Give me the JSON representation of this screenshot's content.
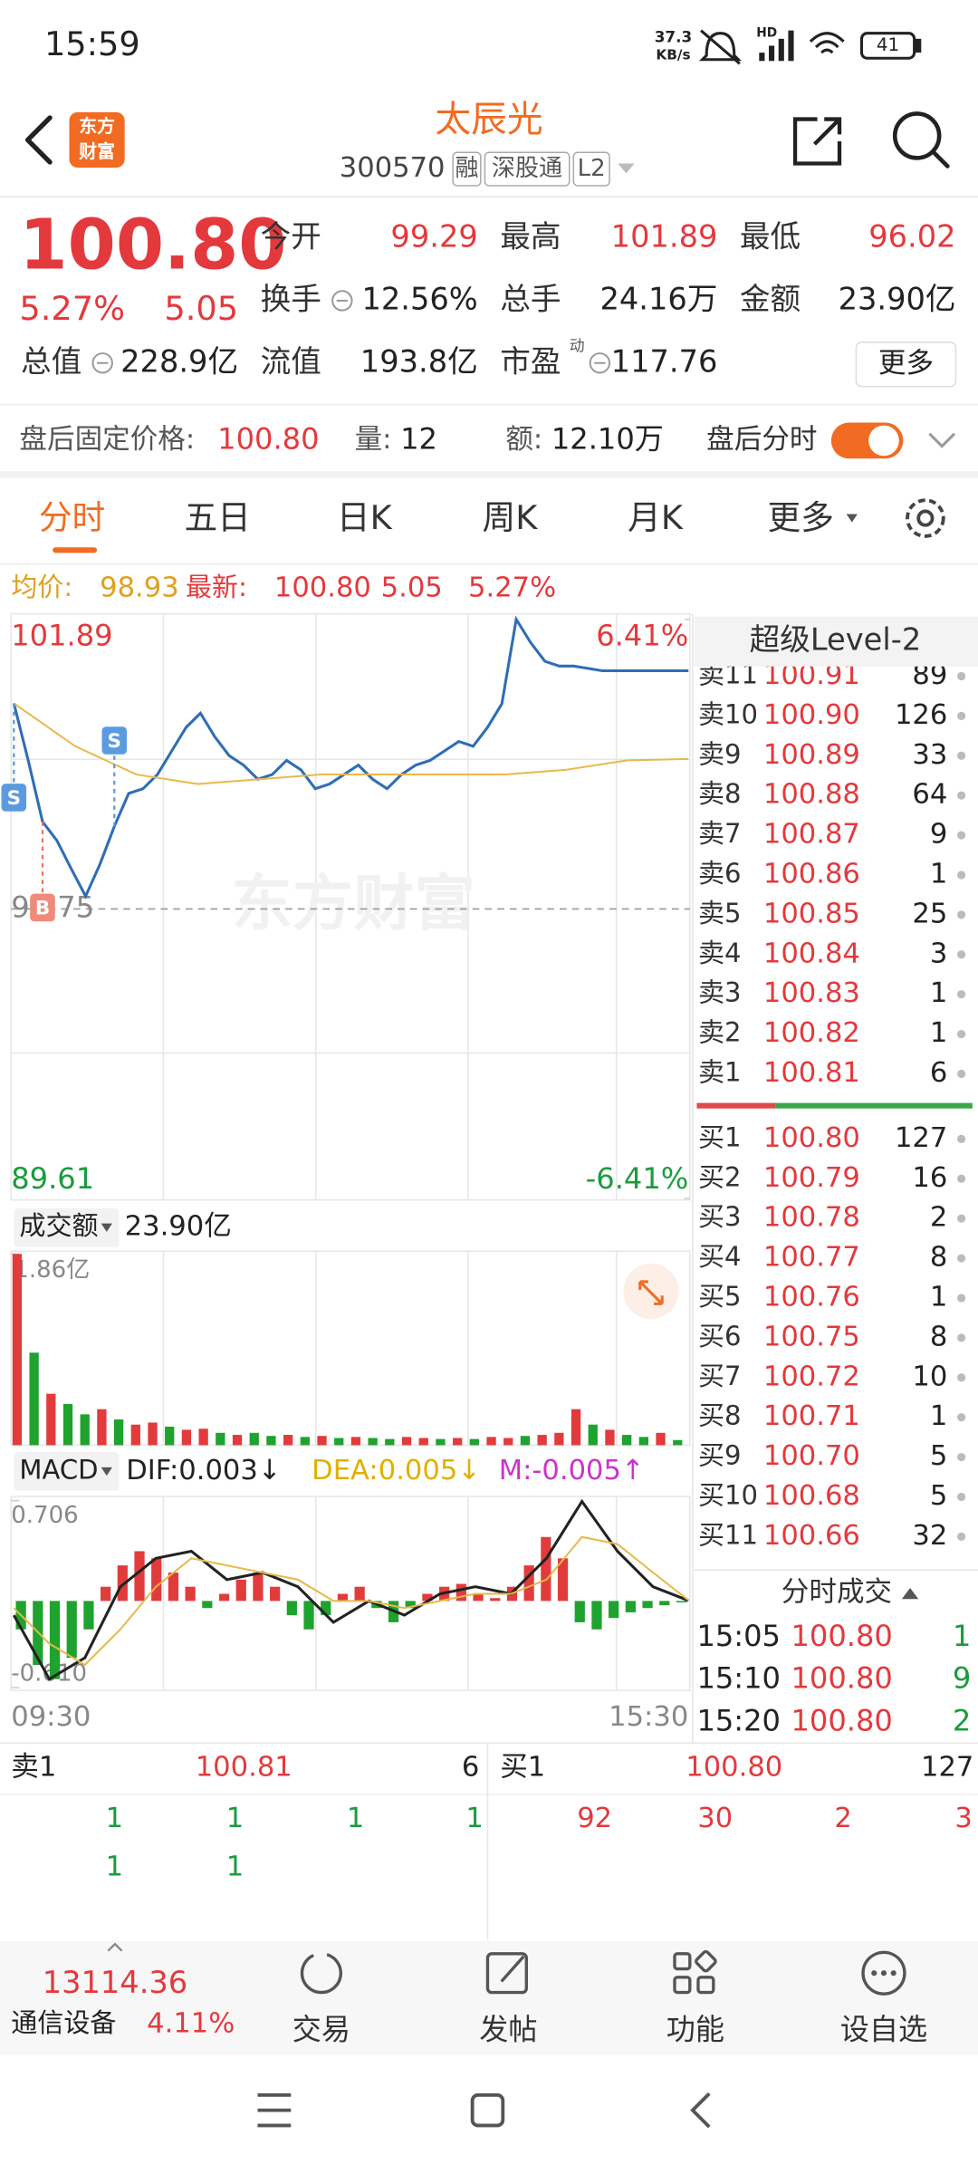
{
  "status_bar": {
    "time": "15:59",
    "net_speed": "37.3",
    "net_unit": "KB/s",
    "signal": "HD",
    "battery": "41"
  },
  "header": {
    "logo": [
      "东方",
      "财富"
    ],
    "title": "太辰光",
    "code": "300570",
    "tags": [
      "融",
      "深股通",
      "L2"
    ]
  },
  "quote": {
    "price": "100.80",
    "change_pct": "5.27%",
    "change": "5.05",
    "fields": [
      {
        "label": "今开",
        "value": "99.29"
      },
      {
        "label": "最高",
        "value": "101.89"
      },
      {
        "label": "最低",
        "value": "96.02"
      },
      {
        "label": "换手",
        "value": "12.56%"
      },
      {
        "label": "总手",
        "value": "24.16万"
      },
      {
        "label": "金额",
        "value": "23.90亿"
      },
      {
        "label": "总值",
        "value": "228.9亿"
      },
      {
        "label": "流值",
        "value": "193.8亿"
      },
      {
        "label": "市盈",
        "value": "117.76"
      }
    ],
    "pe_mark": "动",
    "more": "更多"
  },
  "after_hours": {
    "price_label": "盘后固定价格:",
    "price": "100.80",
    "vol_label": "量:",
    "vol": "12",
    "amt_label": "额:",
    "amt": "12.10万",
    "toggle_label": "盘后分时"
  },
  "tabs": [
    "分时",
    "五日",
    "日K",
    "周K",
    "月K",
    "更多"
  ],
  "info_row": {
    "avg_label": "均价:",
    "avg": "98.93",
    "last_label": "最新:",
    "last": "100.80",
    "change": "5.05",
    "change_pct": "5.27%"
  },
  "level2": {
    "title": "超级Level-2",
    "asks": [
      {
        "label": "卖11",
        "price": "100.91",
        "vol": "89"
      },
      {
        "label": "卖10",
        "price": "100.90",
        "vol": "126"
      },
      {
        "label": "卖9",
        "price": "100.89",
        "vol": "33"
      },
      {
        "label": "卖8",
        "price": "100.88",
        "vol": "64"
      },
      {
        "label": "卖7",
        "price": "100.87",
        "vol": "9"
      },
      {
        "label": "卖6",
        "price": "100.86",
        "vol": "1"
      },
      {
        "label": "卖5",
        "price": "100.85",
        "vol": "25"
      },
      {
        "label": "卖4",
        "price": "100.84",
        "vol": "3"
      },
      {
        "label": "卖3",
        "price": "100.83",
        "vol": "1"
      },
      {
        "label": "卖2",
        "price": "100.82",
        "vol": "1"
      },
      {
        "label": "卖1",
        "price": "100.81",
        "vol": "6"
      }
    ],
    "bids": [
      {
        "label": "买1",
        "price": "100.80",
        "vol": "127"
      },
      {
        "label": "买2",
        "price": "100.79",
        "vol": "16"
      },
      {
        "label": "买3",
        "price": "100.78",
        "vol": "2"
      },
      {
        "label": "买4",
        "price": "100.77",
        "vol": "8"
      },
      {
        "label": "买5",
        "price": "100.76",
        "vol": "1"
      },
      {
        "label": "买6",
        "price": "100.75",
        "vol": "8"
      },
      {
        "label": "买7",
        "price": "100.72",
        "vol": "10"
      },
      {
        "label": "买8",
        "price": "100.71",
        "vol": "1"
      },
      {
        "label": "买9",
        "price": "100.70",
        "vol": "5"
      },
      {
        "label": "买10",
        "price": "100.68",
        "vol": "5"
      },
      {
        "label": "买11",
        "price": "100.66",
        "vol": "32"
      }
    ],
    "trades_title": "分时成交",
    "trades": [
      {
        "time": "15:05",
        "price": "100.80",
        "vol": "1"
      },
      {
        "time": "15:10",
        "price": "100.80",
        "vol": "9"
      },
      {
        "time": "15:20",
        "price": "100.80",
        "vol": "2"
      }
    ]
  },
  "order_queue": {
    "ask": {
      "label": "卖1",
      "price": "100.81",
      "vol": "6"
    },
    "bid": {
      "label": "买1",
      "price": "100.80",
      "vol": "127"
    },
    "ask_queue": [
      "1",
      "1",
      "1",
      "1",
      "1",
      "1"
    ],
    "bid_queue": [
      "92",
      "30",
      "2",
      "3"
    ]
  },
  "bottom_bar": {
    "index_value": "13114.36",
    "sector": "通信设备",
    "sector_pct": "4.11%",
    "buttons": [
      "交易",
      "发帖",
      "功能",
      "设自选"
    ]
  },
  "chart_data": [
    {
      "type": "line",
      "ylim": [
        89.61,
        101.89
      ],
      "yticks": [
        101.89,
        95.75,
        89.61
      ],
      "y2lim": [
        -6.41,
        6.41
      ],
      "y2ticks": [
        {
          "value": 6.41,
          "label": "6.41%"
        },
        {
          "value": -6.41,
          "label": "-6.41%"
        }
      ],
      "watermark": "东方财富",
      "series": [
        {
          "color": "#2f6db5",
          "values": [
            100.11,
            98.9,
            97.6,
            97.2,
            96.6,
            96.02,
            96.7,
            97.5,
            98.2,
            98.3,
            98.6,
            99.1,
            99.6,
            99.9,
            99.4,
            99.0,
            98.8,
            98.5,
            98.6,
            98.9,
            98.7,
            98.3,
            98.4,
            98.6,
            98.8,
            98.5,
            98.3,
            98.6,
            98.8,
            98.9,
            99.1,
            99.3,
            99.2,
            99.6,
            100.1,
            101.89,
            101.4,
            101.0,
            100.9,
            100.9,
            100.85,
            100.8,
            100.8,
            100.8,
            100.8,
            100.8,
            100.8,
            100.8
          ]
        },
        {
          "color": "#e8b84a",
          "values": [
            100.11,
            99.2,
            98.6,
            98.4,
            98.5,
            98.6,
            98.6,
            98.6,
            98.6,
            98.7,
            98.9,
            98.93
          ]
        }
      ],
      "annotations": [
        {
          "text": "S",
          "at": 0
        },
        {
          "text": "S",
          "at": 7
        },
        {
          "text": "B",
          "at": 2
        }
      ]
    },
    {
      "type": "bar",
      "label": "成交额",
      "total": "23.90亿",
      "ylim": [
        0,
        1.86
      ],
      "yticks": [
        {
          "value": 1.86,
          "label": "1.86亿"
        }
      ],
      "values": [
        1.86,
        0.9,
        0.5,
        0.4,
        0.3,
        0.35,
        0.25,
        0.2,
        0.22,
        0.18,
        0.15,
        0.16,
        0.12,
        0.1,
        0.12,
        0.09,
        0.1,
        0.08,
        0.09,
        0.07,
        0.08,
        0.07,
        0.06,
        0.08,
        0.07,
        0.06,
        0.07,
        0.06,
        0.08,
        0.07,
        0.09,
        0.1,
        0.12,
        0.35,
        0.2,
        0.15,
        0.1,
        0.08,
        0.12,
        0.05
      ],
      "colors": [
        "#e23b3b",
        "#1fa22e",
        "#e23b3b",
        "#1fa22e",
        "#1fa22e",
        "#e23b3b",
        "#1fa22e",
        "#e23b3b",
        "#e23b3b",
        "#1fa22e",
        "#e23b3b",
        "#e23b3b",
        "#1fa22e",
        "#e23b3b",
        "#1fa22e",
        "#1fa22e",
        "#e23b3b",
        "#1fa22e",
        "#e23b3b",
        "#1fa22e",
        "#e23b3b",
        "#1fa22e",
        "#1fa22e",
        "#e23b3b",
        "#e23b3b",
        "#1fa22e",
        "#e23b3b",
        "#1fa22e",
        "#e23b3b",
        "#e23b3b",
        "#1fa22e",
        "#e23b3b",
        "#e23b3b",
        "#e23b3b",
        "#1fa22e",
        "#e23b3b",
        "#1fa22e",
        "#1fa22e",
        "#e23b3b",
        "#1fa22e"
      ]
    },
    {
      "type": "macd",
      "label": "MACD",
      "dif_label": "DIF:0.003↓",
      "dea_label": "DEA:0.005↓",
      "m_label": "M:-0.005↑",
      "ylim": [
        -0.61,
        0.706
      ],
      "yticks": [
        0.706,
        {
          "value": -0.61,
          "label": "-0.610"
        }
      ],
      "values": [
        -0.2,
        -0.45,
        -0.55,
        -0.4,
        -0.2,
        0.1,
        0.25,
        0.35,
        0.3,
        0.2,
        0.1,
        -0.05,
        0.05,
        0.15,
        0.2,
        0.1,
        -0.1,
        -0.2,
        -0.1,
        0.05,
        0.1,
        -0.05,
        -0.15,
        -0.05,
        0.05,
        0.1,
        0.12,
        0.05,
        0.02,
        0.1,
        0.25,
        0.45,
        0.3,
        -0.15,
        -0.2,
        -0.12,
        -0.08,
        -0.05,
        -0.03,
        -0.01
      ],
      "series": [
        {
          "color": "#222222",
          "values": [
            -0.1,
            -0.55,
            -0.4,
            0.1,
            0.3,
            0.35,
            0.15,
            0.2,
            0.1,
            -0.15,
            0.0,
            -0.1,
            0.05,
            0.1,
            0.05,
            0.3,
            0.7,
            0.35,
            0.1,
            0.003
          ]
        },
        {
          "color": "#e8b84a",
          "values": [
            -0.05,
            -0.3,
            -0.45,
            -0.2,
            0.1,
            0.3,
            0.25,
            0.2,
            0.15,
            0.0,
            0.0,
            -0.05,
            0.0,
            0.05,
            0.05,
            0.15,
            0.45,
            0.4,
            0.2,
            0.005
          ]
        }
      ],
      "x_labels": [
        "09:30",
        "15:30"
      ]
    }
  ]
}
